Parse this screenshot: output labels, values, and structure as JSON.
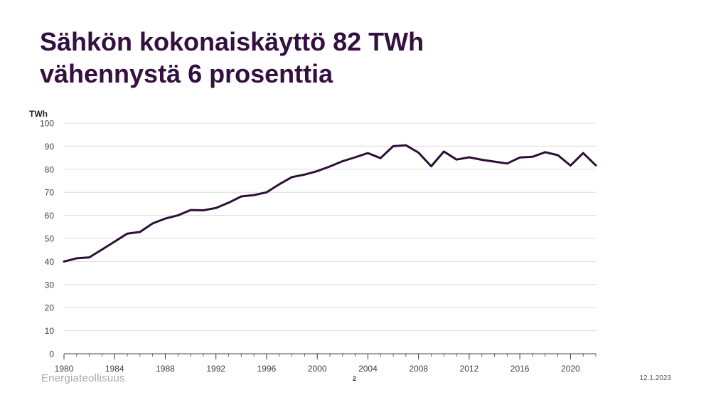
{
  "title": {
    "line1": "Sähkön kokonaiskäyttö 82 TWh",
    "line2": "vähennystä 6 prosenttia"
  },
  "footer": {
    "logo_text": "Energiateollisuus",
    "page_number": "2",
    "date": "12.1.2023"
  },
  "colors": {
    "title": "#33103f",
    "line": "#2b0f35",
    "grid": "#dcdcdc"
  },
  "chart_data": {
    "type": "line",
    "title": "",
    "xlabel": "",
    "ylabel": "TWh",
    "ylim": [
      0,
      100
    ],
    "yticks": [
      0,
      10,
      20,
      30,
      40,
      50,
      60,
      70,
      80,
      90,
      100
    ],
    "xlim": [
      1980,
      2022
    ],
    "xticks": [
      1980,
      1984,
      1988,
      1992,
      1996,
      2000,
      2004,
      2008,
      2012,
      2016,
      2020
    ],
    "grid": true,
    "legend": "none",
    "series": [
      {
        "x": [
          1980,
          1981,
          1982,
          1983,
          1984,
          1985,
          1986,
          1987,
          1988,
          1989,
          1990,
          1991,
          1992,
          1993,
          1994,
          1995,
          1996,
          1997,
          1998,
          1999,
          2000,
          2001,
          2002,
          2003,
          2004,
          2005,
          2006,
          2007,
          2008,
          2009,
          2010,
          2011,
          2012,
          2013,
          2014,
          2015,
          2016,
          2017,
          2018,
          2019,
          2020,
          2021,
          2022
        ],
        "values": [
          40.0,
          41.4,
          41.8,
          45.2,
          48.6,
          52.1,
          52.8,
          56.5,
          58.6,
          60.0,
          62.3,
          62.2,
          63.2,
          65.5,
          68.2,
          68.8,
          70.0,
          73.5,
          76.6,
          77.7,
          79.2,
          81.2,
          83.5,
          85.2,
          87.0,
          84.8,
          90.0,
          90.4,
          87.2,
          81.3,
          87.7,
          84.2,
          85.2,
          84.1,
          83.3,
          82.5,
          85.1,
          85.4,
          87.4,
          86.1,
          81.6,
          87.0,
          81.7
        ]
      }
    ]
  }
}
